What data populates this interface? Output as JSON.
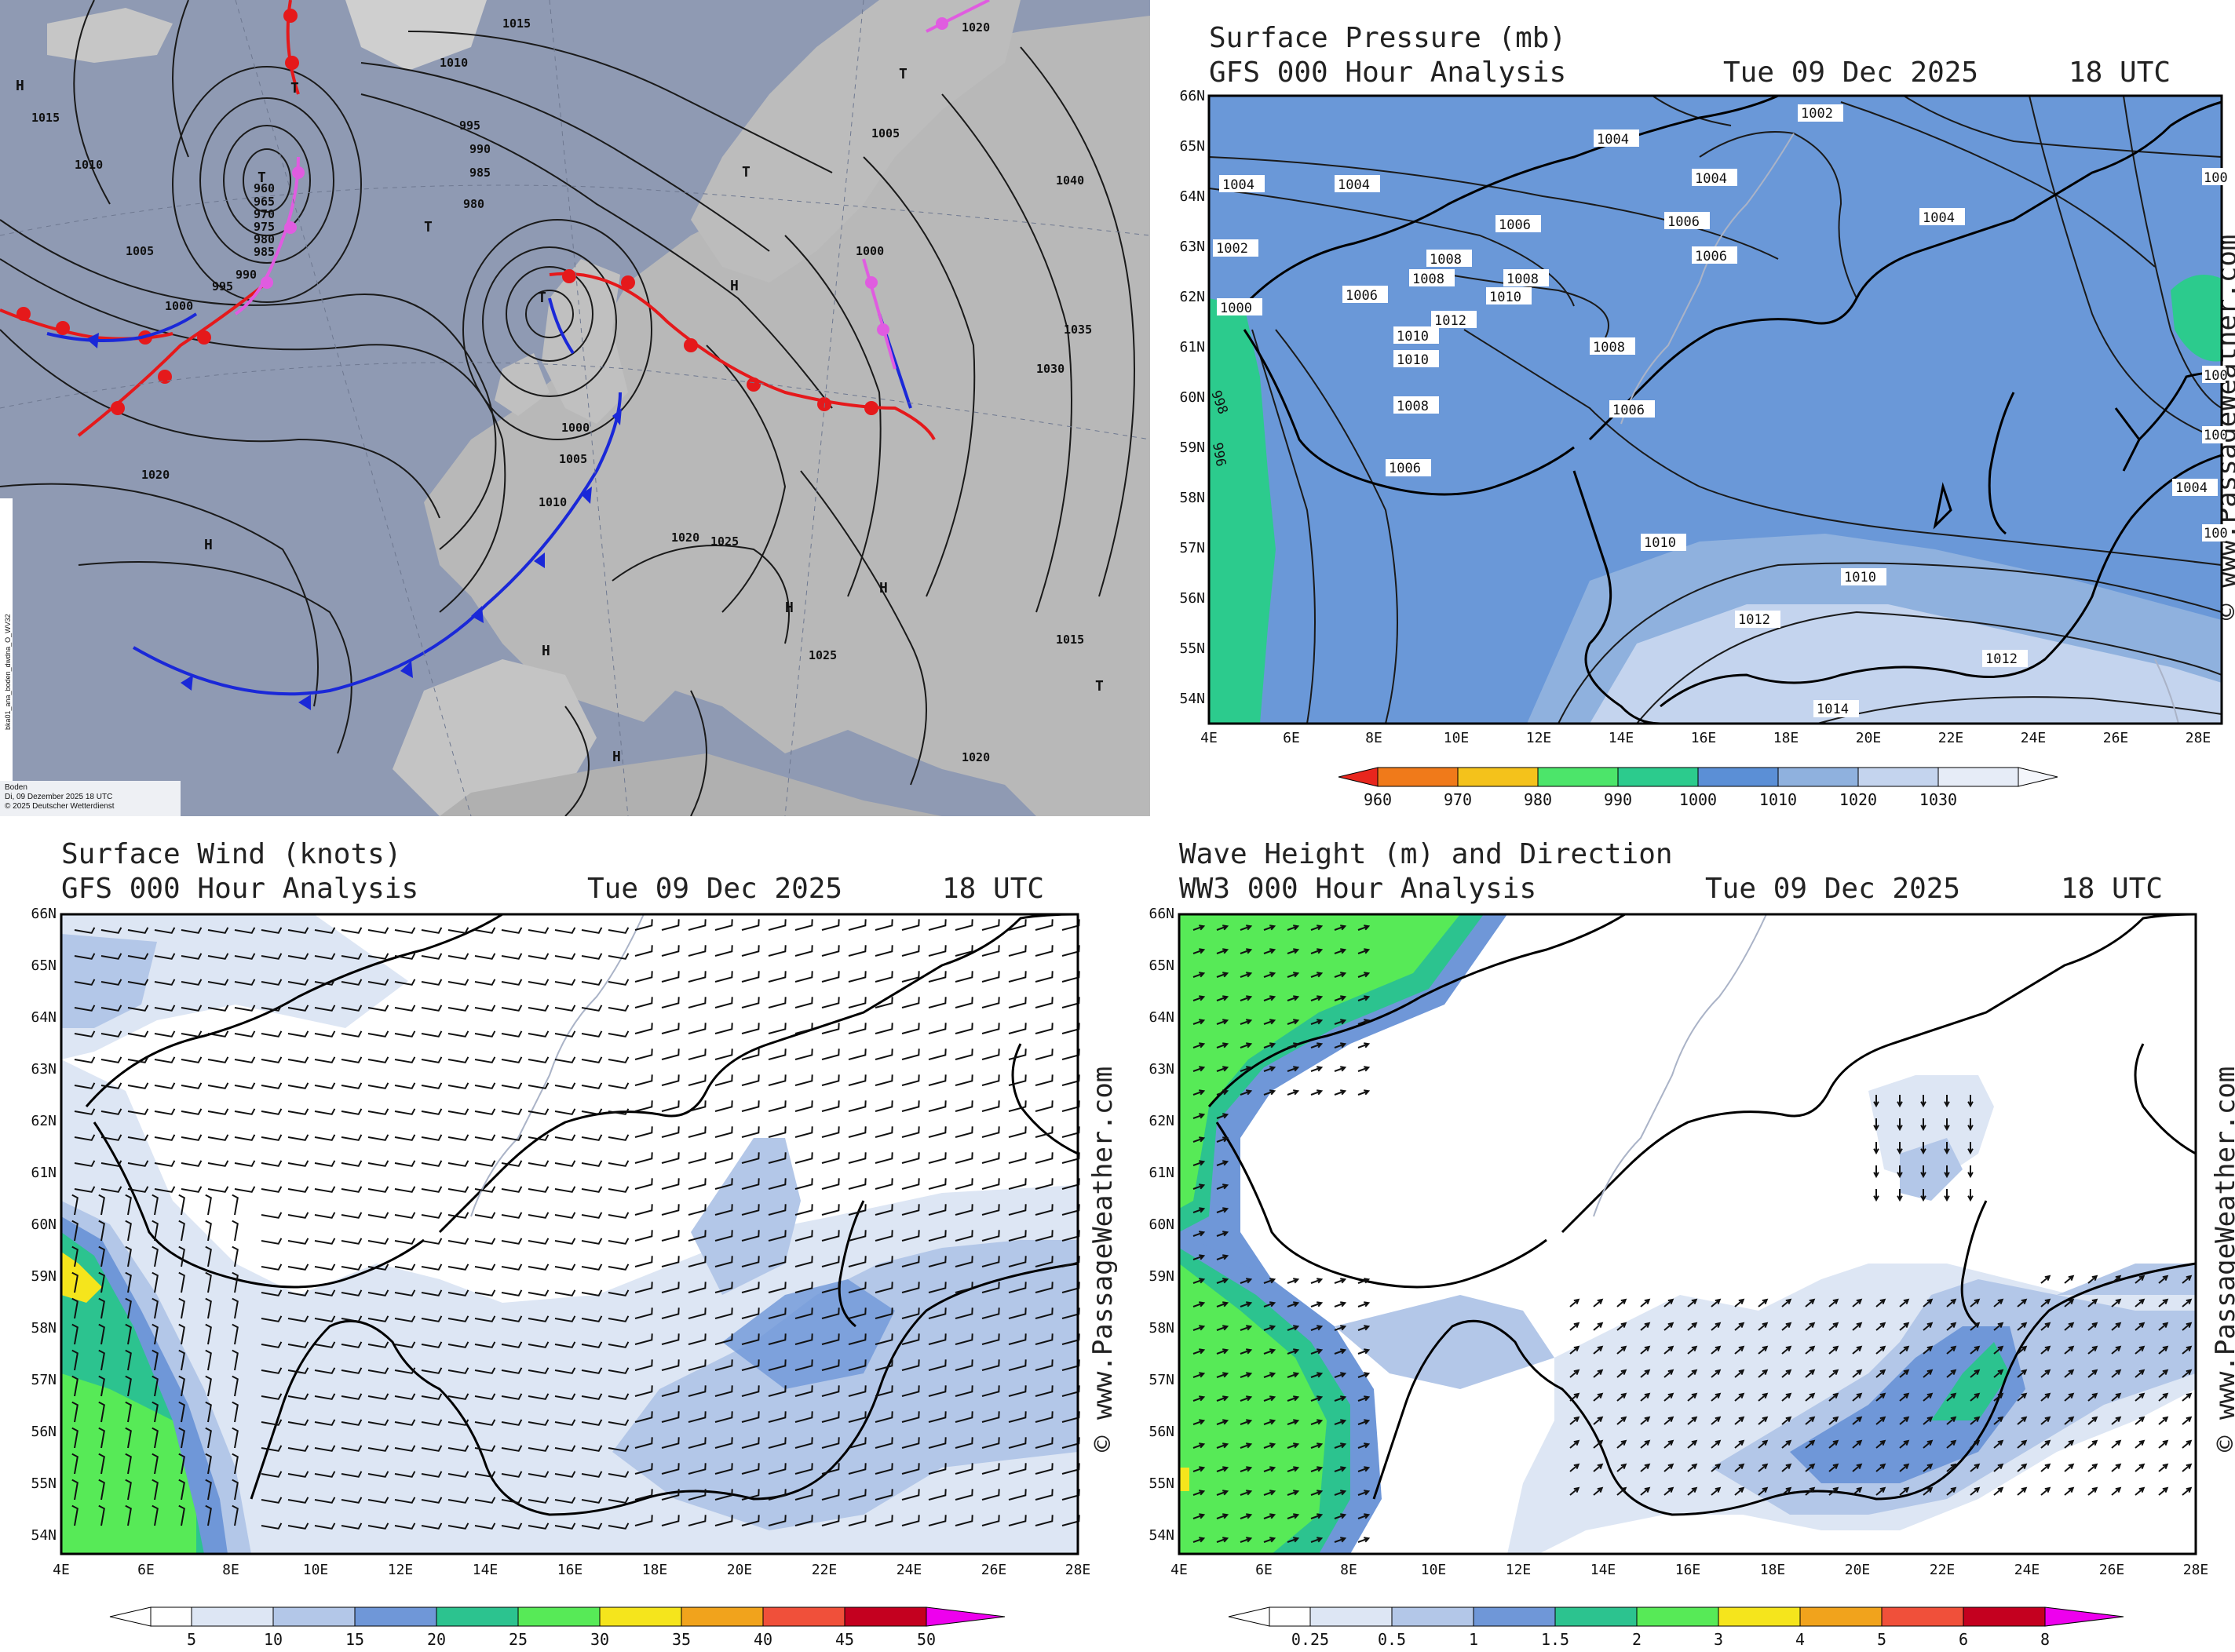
{
  "synoptic": {
    "label_boden": "Boden",
    "label_date": "Di, 09 Dezember 2025 18 UTC",
    "label_copyright": "© 2025 Deutscher Wetterdienst",
    "side_id": "bka01_ana_boden_dwdna_O_WV32",
    "isobar_labels": [
      "1020",
      "1010",
      "1015",
      "1010",
      "1005",
      "1000",
      "995",
      "990",
      "985",
      "980",
      "960",
      "965",
      "970",
      "975",
      "980",
      "985",
      "990",
      "995",
      "1000",
      "1005",
      "1010",
      "1015",
      "1020",
      "1025",
      "1030",
      "1035",
      "1040",
      "1020",
      "1025",
      "1020",
      "1015",
      "1005",
      "1000"
    ],
    "pressure_centers": [
      "H",
      "H",
      "T",
      "T",
      "T",
      "T",
      "T",
      "H",
      "H",
      "H",
      "H",
      "H",
      "T",
      "T"
    ]
  },
  "pressure": {
    "title_line1": "Surface Pressure (mb)",
    "title_line2": "GFS 000 Hour Analysis",
    "date": "Tue 09 Dec 2025",
    "time": "18 UTC",
    "watermark": "© www.PassageWeather.com",
    "lat_labels": [
      "66N",
      "65N",
      "64N",
      "63N",
      "62N",
      "61N",
      "60N",
      "59N",
      "58N",
      "57N",
      "56N",
      "55N",
      "54N"
    ],
    "lon_labels": [
      "4E",
      "6E",
      "8E",
      "10E",
      "12E",
      "14E",
      "16E",
      "18E",
      "20E",
      "22E",
      "24E",
      "26E",
      "28E"
    ],
    "isobar_labels": [
      "1002",
      "1004",
      "1004",
      "1004",
      "1004",
      "1006",
      "1006",
      "1006",
      "1004",
      "1002",
      "1000",
      "1008",
      "1008",
      "1008",
      "1010",
      "1012",
      "1010",
      "1010",
      "1006",
      "1008",
      "1008",
      "1006",
      "1006",
      "998",
      "996",
      "1010",
      "1012",
      "1010",
      "1012",
      "1014",
      "1004",
      "100",
      "100",
      "100",
      "100"
    ],
    "scale_ticks": [
      "960",
      "970",
      "980",
      "990",
      "1000",
      "1010",
      "1020",
      "1030"
    ],
    "colors": [
      "#e8261d",
      "#f07a1a",
      "#f4c21b",
      "#f0ee25",
      "#4ce56a",
      "#2ccb8d",
      "#5b8fd6",
      "#8fb1de",
      "#c4d4ee",
      "#e6ecf7"
    ]
  },
  "wind": {
    "title_line1": "Surface Wind (knots)",
    "title_line2": "GFS 000 Hour Analysis",
    "date": "Tue 09 Dec 2025",
    "time": "18 UTC",
    "watermark": "© www.PassageWeather.com",
    "lat_labels": [
      "66N",
      "65N",
      "64N",
      "63N",
      "62N",
      "61N",
      "60N",
      "59N",
      "58N",
      "57N",
      "56N",
      "55N",
      "54N"
    ],
    "lon_labels": [
      "4E",
      "6E",
      "8E",
      "10E",
      "12E",
      "14E",
      "16E",
      "18E",
      "20E",
      "22E",
      "24E",
      "26E",
      "28E"
    ],
    "scale_ticks": [
      "5",
      "10",
      "15",
      "20",
      "25",
      "30",
      "35",
      "40",
      "45",
      "50"
    ],
    "colors": [
      "#ffffff",
      "#dde6f4",
      "#b3c7e8",
      "#6f97d8",
      "#2cc38f",
      "#57ea57",
      "#f5e51c",
      "#f1a31c",
      "#f0503a",
      "#c4001f",
      "#ee00ee"
    ]
  },
  "wave": {
    "title_line1": "Wave Height (m) and Direction",
    "title_line2": "WW3 000 Hour Analysis",
    "date": "Tue 09 Dec 2025",
    "time": "18 UTC",
    "watermark": "© www.PassageWeather.com",
    "lat_labels": [
      "66N",
      "65N",
      "64N",
      "63N",
      "62N",
      "61N",
      "60N",
      "59N",
      "58N",
      "57N",
      "56N",
      "55N",
      "54N"
    ],
    "lon_labels": [
      "4E",
      "6E",
      "8E",
      "10E",
      "12E",
      "14E",
      "16E",
      "18E",
      "20E",
      "22E",
      "24E",
      "26E",
      "28E"
    ],
    "scale_ticks": [
      "0.25",
      "0.5",
      "1",
      "1.5",
      "2",
      "3",
      "4",
      "5",
      "6",
      "8"
    ],
    "colors": [
      "#ffffff",
      "#dde6f4",
      "#b3c7e8",
      "#6f97d8",
      "#2cc38f",
      "#57ea57",
      "#f5e51c",
      "#f1a31c",
      "#f0503a",
      "#c4001f",
      "#ee00ee"
    ]
  }
}
